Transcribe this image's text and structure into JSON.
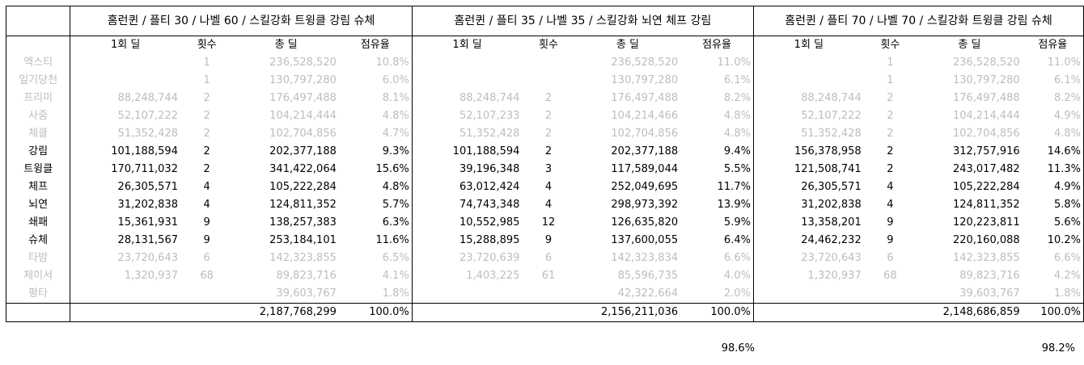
{
  "groups": [
    "홈런퀸 / 플티 30 / 나벨 60 / 스킬강화 트윙클 강림 슈체",
    "홈런퀸 / 플티 35 / 나벨 35 / 스킬강화 뇌연 체프 강림",
    "홈런퀸 / 플티 70 / 나벨 70 / 스킬강화 트윙클 강림 슈체"
  ],
  "columns": [
    "1회 딜",
    "횟수",
    "총 딜",
    "점유율"
  ],
  "rows": [
    {
      "name": "엑스티",
      "dim": true,
      "g": [
        [
          "",
          "1",
          "236,528,520",
          "10.8%"
        ],
        [
          "",
          "",
          "236,528,520",
          "11.0%"
        ],
        [
          "",
          "1",
          "236,528,520",
          "11.0%"
        ]
      ]
    },
    {
      "name": "일기당천",
      "dim": true,
      "g": [
        [
          "",
          "1",
          "130,797,280",
          "6.0%"
        ],
        [
          "",
          "",
          "130,797,280",
          "6.1%"
        ],
        [
          "",
          "1",
          "130,797,280",
          "6.1%"
        ]
      ]
    },
    {
      "name": "프리미",
      "dim": true,
      "g": [
        [
          "88,248,744",
          "2",
          "176,497,488",
          "8.1%"
        ],
        [
          "88,248,744",
          "2",
          "176,497,488",
          "8.2%"
        ],
        [
          "88,248,744",
          "2",
          "176,497,488",
          "8.2%"
        ]
      ]
    },
    {
      "name": "사줌",
      "dim": true,
      "g": [
        [
          "52,107,222",
          "2",
          "104,214,444",
          "4.8%"
        ],
        [
          "52,107,233",
          "2",
          "104,214,466",
          "4.8%"
        ],
        [
          "52,107,222",
          "2",
          "104,214,444",
          "4.9%"
        ]
      ]
    },
    {
      "name": "체클",
      "dim": true,
      "g": [
        [
          "51,352,428",
          "2",
          "102,704,856",
          "4.7%"
        ],
        [
          "51,352,428",
          "2",
          "102,704,856",
          "4.8%"
        ],
        [
          "51,352,428",
          "2",
          "102,704,856",
          "4.8%"
        ]
      ]
    },
    {
      "name": "강림",
      "dim": false,
      "g": [
        [
          "101,188,594",
          "2",
          "202,377,188",
          "9.3%"
        ],
        [
          "101,188,594",
          "2",
          "202,377,188",
          "9.4%"
        ],
        [
          "156,378,958",
          "2",
          "312,757,916",
          "14.6%"
        ]
      ]
    },
    {
      "name": "트윙클",
      "dim": false,
      "g": [
        [
          "170,711,032",
          "2",
          "341,422,064",
          "15.6%"
        ],
        [
          "39,196,348",
          "3",
          "117,589,044",
          "5.5%"
        ],
        [
          "121,508,741",
          "2",
          "243,017,482",
          "11.3%"
        ]
      ]
    },
    {
      "name": "체프",
      "dim": false,
      "g": [
        [
          "26,305,571",
          "4",
          "105,222,284",
          "4.8%"
        ],
        [
          "63,012,424",
          "4",
          "252,049,695",
          "11.7%"
        ],
        [
          "26,305,571",
          "4",
          "105,222,284",
          "4.9%"
        ]
      ]
    },
    {
      "name": "뇌연",
      "dim": false,
      "g": [
        [
          "31,202,838",
          "4",
          "124,811,352",
          "5.7%"
        ],
        [
          "74,743,348",
          "4",
          "298,973,392",
          "13.9%"
        ],
        [
          "31,202,838",
          "4",
          "124,811,352",
          "5.8%"
        ]
      ]
    },
    {
      "name": "쇄패",
      "dim": false,
      "g": [
        [
          "15,361,931",
          "9",
          "138,257,383",
          "6.3%"
        ],
        [
          "10,552,985",
          "12",
          "126,635,820",
          "5.9%"
        ],
        [
          "13,358,201",
          "9",
          "120,223,811",
          "5.6%"
        ]
      ]
    },
    {
      "name": "슈체",
      "dim": false,
      "g": [
        [
          "28,131,567",
          "9",
          "253,184,101",
          "11.6%"
        ],
        [
          "15,288,895",
          "9",
          "137,600,055",
          "6.4%"
        ],
        [
          "24,462,232",
          "9",
          "220,160,088",
          "10.2%"
        ]
      ]
    },
    {
      "name": "타밤",
      "dim": true,
      "g": [
        [
          "23,720,643",
          "6",
          "142,323,855",
          "6.5%"
        ],
        [
          "23,720,639",
          "6",
          "142,323,834",
          "6.6%"
        ],
        [
          "23,720,643",
          "6",
          "142,323,855",
          "6.6%"
        ]
      ]
    },
    {
      "name": "체이서",
      "dim": true,
      "g": [
        [
          "1,320,937",
          "68",
          "89,823,716",
          "4.1%"
        ],
        [
          "1,403,225",
          "61",
          "85,596,735",
          "4.0%"
        ],
        [
          "1,320,937",
          "68",
          "89,823,716",
          "4.2%"
        ]
      ]
    },
    {
      "name": "평타",
      "dim": true,
      "g": [
        [
          "",
          "",
          "39,603,767",
          "1.8%"
        ],
        [
          "",
          "",
          "42,322,664",
          "2.0%"
        ],
        [
          "",
          "",
          "39,603,767",
          "1.8%"
        ]
      ]
    }
  ],
  "totals": [
    {
      "total": "2,187,768,299",
      "share": "100.0%"
    },
    {
      "total": "2,156,211,036",
      "share": "100.0%"
    },
    {
      "total": "2,148,686,859",
      "share": "100.0%"
    }
  ],
  "footnotes": [
    "98.6%",
    "98.2%"
  ]
}
